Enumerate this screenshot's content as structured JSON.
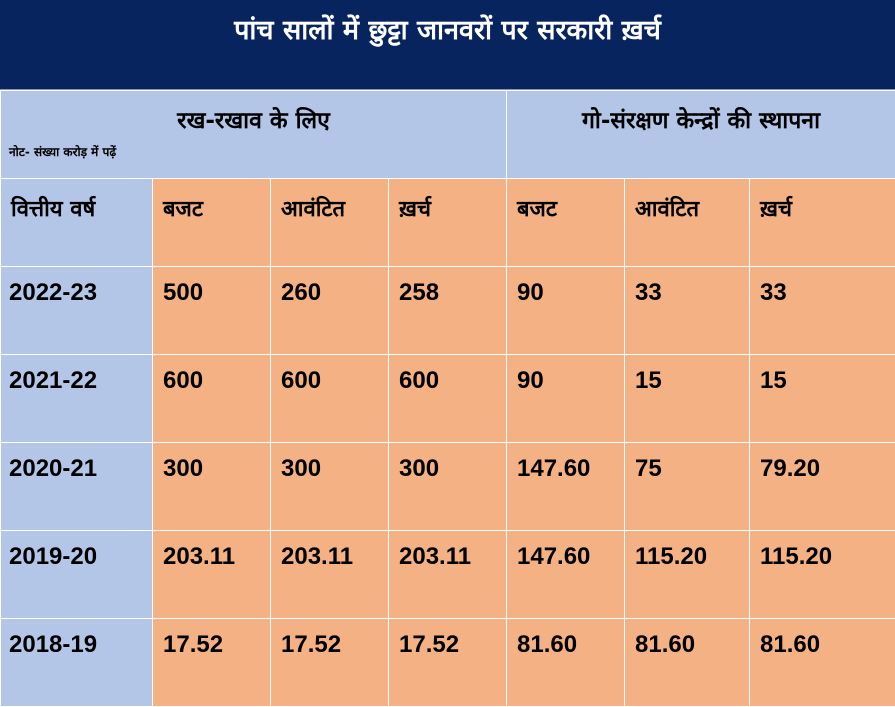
{
  "title": "पांच सालों में छुट्टा जानवरों पर सरकारी ख़र्च",
  "groups": {
    "maintenance": "रख-रखाव के लिए",
    "shelters": "गो-संरक्षण केन्द्रों की स्थापना"
  },
  "note": "नोट- संख्या करोड़ में पढ़ें",
  "columns": [
    "वित्तीय वर्ष",
    "बजट",
    "आवंटित",
    "ख़र्च",
    "बजट",
    "आवंटित",
    "ख़र्च"
  ],
  "rows": [
    [
      "2022-23",
      "500",
      "260",
      "258",
      "90",
      "33",
      "33"
    ],
    [
      "2021-22",
      "600",
      "600",
      "600",
      "90",
      "15",
      "15"
    ],
    [
      "2020-21",
      "300",
      "300",
      "300",
      "147.60",
      "75",
      "79.20"
    ],
    [
      "2019-20",
      "203.11",
      "203.11",
      "203.11",
      "147.60",
      "115.20",
      "115.20"
    ],
    [
      "2018-19",
      "17.52",
      "17.52",
      "17.52",
      "81.60",
      "81.60",
      "81.60"
    ]
  ],
  "colors": {
    "title_bg": "#07245e",
    "header_bg": "#b4c6e7",
    "cell_bg": "#f4b183"
  }
}
